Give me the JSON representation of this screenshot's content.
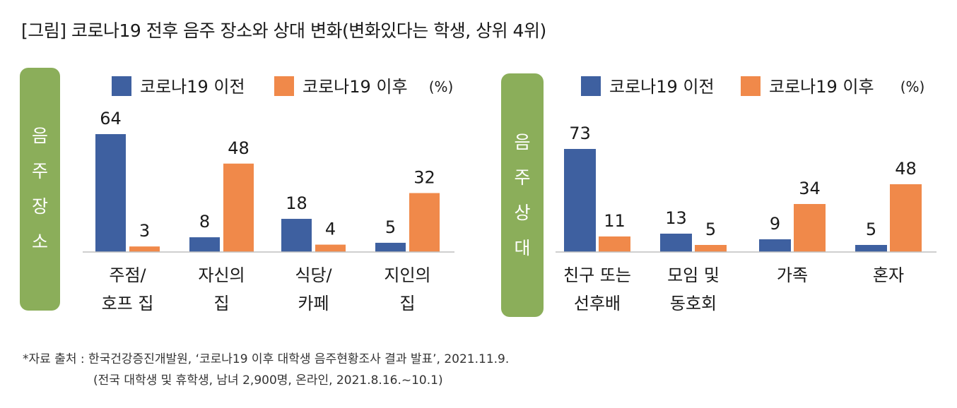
{
  "title": "[그림] 코로나19 전후 음주 장소와 상대 변화(변화있다는 학생, 상위 4위)",
  "colors": {
    "before": "#3e60a0",
    "after": "#f0894a",
    "side_label_bg": "#8bae5a",
    "axis": "#bfbfbf"
  },
  "chart_data": [
    {
      "type": "bar",
      "side_label": [
        "음",
        "주",
        "장",
        "소"
      ],
      "unit": "(%)",
      "categories": [
        [
          "주점/",
          "호프 집"
        ],
        [
          "자신의",
          "집"
        ],
        [
          "식당/",
          "카페"
        ],
        [
          "지인의",
          "집"
        ]
      ],
      "series": [
        {
          "name": "코로나19 이전",
          "values": [
            64,
            8,
            18,
            5
          ]
        },
        {
          "name": "코로나19 이후",
          "values": [
            3,
            48,
            4,
            32
          ]
        }
      ],
      "ylim": [
        0,
        64
      ]
    },
    {
      "type": "bar",
      "side_label": [
        "음",
        "주",
        "상",
        "대"
      ],
      "unit": "(%)",
      "categories": [
        [
          "친구 또는",
          "선후배"
        ],
        [
          "모임 및",
          "동호회"
        ],
        [
          "가족"
        ],
        [
          "혼자"
        ]
      ],
      "series": [
        {
          "name": "코로나19 이전",
          "values": [
            73,
            13,
            9,
            5
          ]
        },
        {
          "name": "코로나19 이후",
          "values": [
            11,
            5,
            34,
            48
          ]
        }
      ],
      "ylim": [
        0,
        73
      ]
    }
  ],
  "footnote": {
    "line1": "*자료 출처 : 한국건강증진개발원, ‘코로나19 이후 대학생 음주현황조사 결과 발표’, 2021.11.9.",
    "line2": "(전국 대학생 및 휴학생, 남녀 2,900명, 온라인, 2021.8.16.~10.1)"
  }
}
